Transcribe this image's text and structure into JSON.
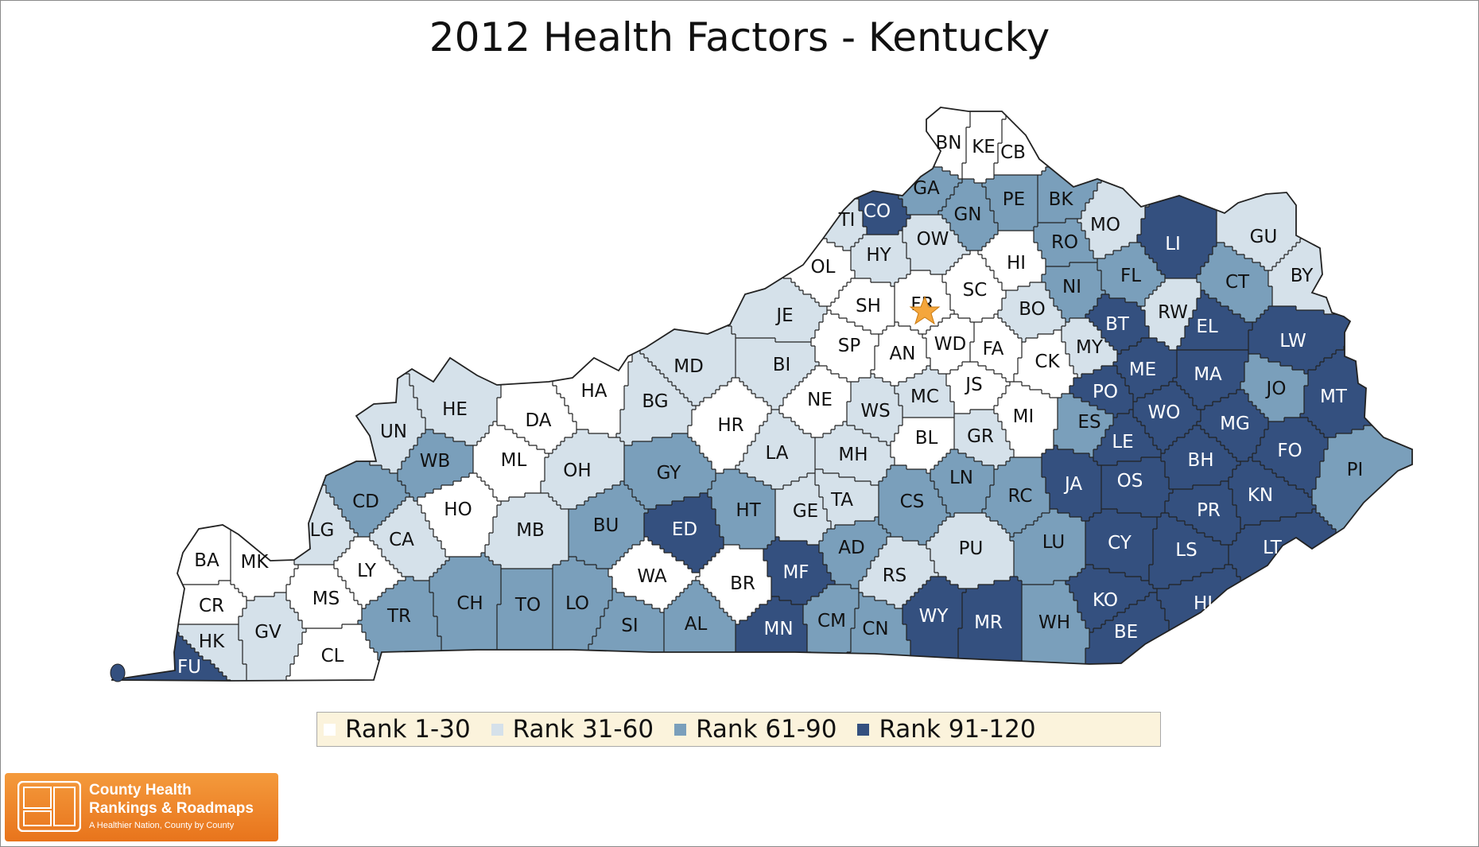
{
  "title": "2012 Health Factors - Kentucky",
  "colors": {
    "rank_1_30": "#ffffff",
    "rank_31_60": "#d5e1ea",
    "rank_61_90": "#7a9fbb",
    "rank_91_120": "#34507f",
    "border": "#222222",
    "capital_star": "#f4a63c",
    "legend_background": "#fbf3dc",
    "logo_orange": "#ef8a2c"
  },
  "legend": [
    {
      "label": "Rank 1-30",
      "class": "rank_1_30"
    },
    {
      "label": "Rank 31-60",
      "class": "rank_31_60"
    },
    {
      "label": "Rank 61-90",
      "class": "rank_61_90"
    },
    {
      "label": "Rank 91-120",
      "class": "rank_91_120"
    }
  ],
  "counties": [
    {
      "abbr": "BN",
      "class": "rank_1_30"
    },
    {
      "abbr": "KE",
      "class": "rank_1_30"
    },
    {
      "abbr": "CB",
      "class": "rank_1_30"
    },
    {
      "abbr": "GA",
      "class": "rank_61_90"
    },
    {
      "abbr": "CO",
      "class": "rank_91_120"
    },
    {
      "abbr": "GN",
      "class": "rank_61_90"
    },
    {
      "abbr": "PE",
      "class": "rank_61_90"
    },
    {
      "abbr": "BK",
      "class": "rank_61_90"
    },
    {
      "abbr": "TI",
      "class": "rank_31_60"
    },
    {
      "abbr": "OW",
      "class": "rank_31_60"
    },
    {
      "abbr": "MO",
      "class": "rank_31_60"
    },
    {
      "abbr": "LI",
      "class": "rank_91_120"
    },
    {
      "abbr": "GU",
      "class": "rank_31_60"
    },
    {
      "abbr": "RO",
      "class": "rank_61_90"
    },
    {
      "abbr": "HY",
      "class": "rank_31_60"
    },
    {
      "abbr": "OL",
      "class": "rank_1_30"
    },
    {
      "abbr": "HI",
      "class": "rank_1_30"
    },
    {
      "abbr": "BY",
      "class": "rank_31_60"
    },
    {
      "abbr": "FL",
      "class": "rank_61_90"
    },
    {
      "abbr": "NI",
      "class": "rank_61_90"
    },
    {
      "abbr": "CT",
      "class": "rank_61_90"
    },
    {
      "abbr": "SH",
      "class": "rank_1_30"
    },
    {
      "abbr": "FR",
      "class": "rank_1_30"
    },
    {
      "abbr": "SC",
      "class": "rank_1_30"
    },
    {
      "abbr": "JE",
      "class": "rank_31_60"
    },
    {
      "abbr": "BO",
      "class": "rank_31_60"
    },
    {
      "abbr": "RW",
      "class": "rank_31_60"
    },
    {
      "abbr": "BT",
      "class": "rank_91_120"
    },
    {
      "abbr": "EL",
      "class": "rank_91_120"
    },
    {
      "abbr": "SP",
      "class": "rank_1_30"
    },
    {
      "abbr": "WD",
      "class": "rank_1_30"
    },
    {
      "abbr": "AN",
      "class": "rank_1_30"
    },
    {
      "abbr": "FA",
      "class": "rank_1_30"
    },
    {
      "abbr": "CK",
      "class": "rank_1_30"
    },
    {
      "abbr": "MY",
      "class": "rank_31_60"
    },
    {
      "abbr": "LW",
      "class": "rank_91_120"
    },
    {
      "abbr": "MD",
      "class": "rank_31_60"
    },
    {
      "abbr": "BI",
      "class": "rank_31_60"
    },
    {
      "abbr": "ME",
      "class": "rank_91_120"
    },
    {
      "abbr": "HA",
      "class": "rank_1_30"
    },
    {
      "abbr": "MA",
      "class": "rank_91_120"
    },
    {
      "abbr": "JS",
      "class": "rank_1_30"
    },
    {
      "abbr": "PO",
      "class": "rank_91_120"
    },
    {
      "abbr": "JO",
      "class": "rank_61_90"
    },
    {
      "abbr": "MT",
      "class": "rank_91_120"
    },
    {
      "abbr": "HE",
      "class": "rank_31_60"
    },
    {
      "abbr": "BG",
      "class": "rank_31_60"
    },
    {
      "abbr": "NE",
      "class": "rank_1_30"
    },
    {
      "abbr": "MC",
      "class": "rank_31_60"
    },
    {
      "abbr": "WS",
      "class": "rank_31_60"
    },
    {
      "abbr": "MI",
      "class": "rank_1_30"
    },
    {
      "abbr": "WO",
      "class": "rank_91_120"
    },
    {
      "abbr": "ES",
      "class": "rank_61_90"
    },
    {
      "abbr": "MG",
      "class": "rank_91_120"
    },
    {
      "abbr": "DA",
      "class": "rank_1_30"
    },
    {
      "abbr": "HR",
      "class": "rank_1_30"
    },
    {
      "abbr": "UN",
      "class": "rank_31_60"
    },
    {
      "abbr": "BL",
      "class": "rank_1_30"
    },
    {
      "abbr": "GR",
      "class": "rank_31_60"
    },
    {
      "abbr": "LE",
      "class": "rank_91_120"
    },
    {
      "abbr": "FO",
      "class": "rank_91_120"
    },
    {
      "abbr": "WB",
      "class": "rank_61_90"
    },
    {
      "abbr": "ML",
      "class": "rank_1_30"
    },
    {
      "abbr": "LA",
      "class": "rank_31_60"
    },
    {
      "abbr": "MH",
      "class": "rank_31_60"
    },
    {
      "abbr": "BH",
      "class": "rank_91_120"
    },
    {
      "abbr": "PI",
      "class": "rank_61_90"
    },
    {
      "abbr": "OH",
      "class": "rank_31_60"
    },
    {
      "abbr": "GY",
      "class": "rank_61_90"
    },
    {
      "abbr": "LN",
      "class": "rank_61_90"
    },
    {
      "abbr": "OS",
      "class": "rank_91_120"
    },
    {
      "abbr": "JA",
      "class": "rank_91_120"
    },
    {
      "abbr": "KN",
      "class": "rank_91_120"
    },
    {
      "abbr": "CD",
      "class": "rank_61_90"
    },
    {
      "abbr": "HO",
      "class": "rank_1_30"
    },
    {
      "abbr": "TA",
      "class": "rank_31_60"
    },
    {
      "abbr": "CS",
      "class": "rank_61_90"
    },
    {
      "abbr": "RC",
      "class": "rank_61_90"
    },
    {
      "abbr": "PR",
      "class": "rank_91_120"
    },
    {
      "abbr": "HT",
      "class": "rank_61_90"
    },
    {
      "abbr": "GE",
      "class": "rank_31_60"
    },
    {
      "abbr": "LG",
      "class": "rank_31_60"
    },
    {
      "abbr": "BU",
      "class": "rank_61_90"
    },
    {
      "abbr": "CA",
      "class": "rank_31_60"
    },
    {
      "abbr": "MB",
      "class": "rank_31_60"
    },
    {
      "abbr": "ED",
      "class": "rank_91_120"
    },
    {
      "abbr": "AD",
      "class": "rank_61_90"
    },
    {
      "abbr": "LU",
      "class": "rank_61_90"
    },
    {
      "abbr": "PU",
      "class": "rank_31_60"
    },
    {
      "abbr": "CY",
      "class": "rank_91_120"
    },
    {
      "abbr": "LS",
      "class": "rank_91_120"
    },
    {
      "abbr": "LT",
      "class": "rank_91_120"
    },
    {
      "abbr": "BA",
      "class": "rank_1_30"
    },
    {
      "abbr": "MK",
      "class": "rank_1_30"
    },
    {
      "abbr": "LY",
      "class": "rank_1_30"
    },
    {
      "abbr": "MF",
      "class": "rank_91_120"
    },
    {
      "abbr": "WA",
      "class": "rank_1_30"
    },
    {
      "abbr": "BR",
      "class": "rank_1_30"
    },
    {
      "abbr": "MS",
      "class": "rank_1_30"
    },
    {
      "abbr": "RS",
      "class": "rank_31_60"
    },
    {
      "abbr": "CR",
      "class": "rank_1_30"
    },
    {
      "abbr": "CH",
      "class": "rank_61_90"
    },
    {
      "abbr": "TO",
      "class": "rank_61_90"
    },
    {
      "abbr": "LO",
      "class": "rank_61_90"
    },
    {
      "abbr": "TR",
      "class": "rank_61_90"
    },
    {
      "abbr": "KO",
      "class": "rank_91_120"
    },
    {
      "abbr": "HL",
      "class": "rank_91_120"
    },
    {
      "abbr": "WY",
      "class": "rank_91_120"
    },
    {
      "abbr": "MR",
      "class": "rank_91_120"
    },
    {
      "abbr": "CM",
      "class": "rank_61_90"
    },
    {
      "abbr": "MN",
      "class": "rank_91_120"
    },
    {
      "abbr": "GV",
      "class": "rank_31_60"
    },
    {
      "abbr": "SI",
      "class": "rank_61_90"
    },
    {
      "abbr": "AL",
      "class": "rank_61_90"
    },
    {
      "abbr": "CN",
      "class": "rank_61_90"
    },
    {
      "abbr": "WH",
      "class": "rank_61_90"
    },
    {
      "abbr": "HK",
      "class": "rank_31_60"
    },
    {
      "abbr": "BE",
      "class": "rank_91_120"
    },
    {
      "abbr": "CL",
      "class": "rank_1_30"
    },
    {
      "abbr": "FU",
      "class": "rank_91_120"
    }
  ],
  "capital_icon": "star-icon",
  "logo": {
    "line1": "County Health",
    "line2": "Rankings & Roadmaps",
    "tagline": "A Healthier Nation, County by County"
  }
}
